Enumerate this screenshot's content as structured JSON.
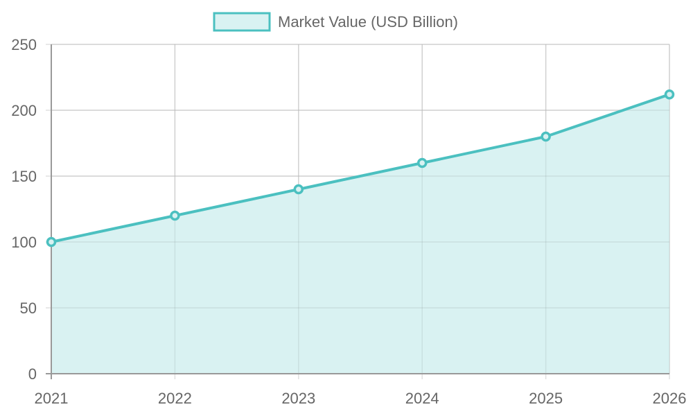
{
  "chart_data": {
    "type": "area",
    "categories": [
      "2021",
      "2022",
      "2023",
      "2024",
      "2025",
      "2026"
    ],
    "series": [
      {
        "name": "Market Value (USD Billion)",
        "values": [
          100,
          120,
          140,
          160,
          180,
          212
        ]
      }
    ],
    "ylim": [
      0,
      250
    ],
    "yticks": [
      0,
      50,
      100,
      150,
      200,
      250
    ],
    "grid": true,
    "legend": "top-center",
    "colors": {
      "line": "#4bc0c0",
      "fill": "#d9f2f2",
      "grid": "#e0e0e0",
      "axis": "#999999",
      "text": "#666666"
    }
  }
}
